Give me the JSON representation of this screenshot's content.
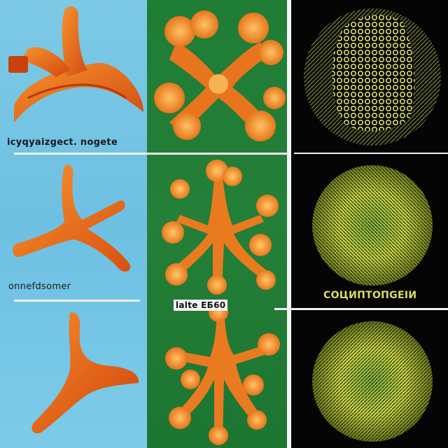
{
  "labels": {
    "top_left": "іcyqyaizgect.  nogete",
    "middle_left": "onnefdsomer",
    "center_tag": "lalte ЕБ60",
    "right_caption": "COЦИПТOПGEIИ"
  },
  "colors": {
    "blue_panel": "#7cc9e6",
    "green_panel": "#217c36",
    "black_panel": "#050505",
    "orange": "#ef6a1a",
    "pale_orange": "#f6a13a",
    "yellow_green": "#c9d64a"
  }
}
